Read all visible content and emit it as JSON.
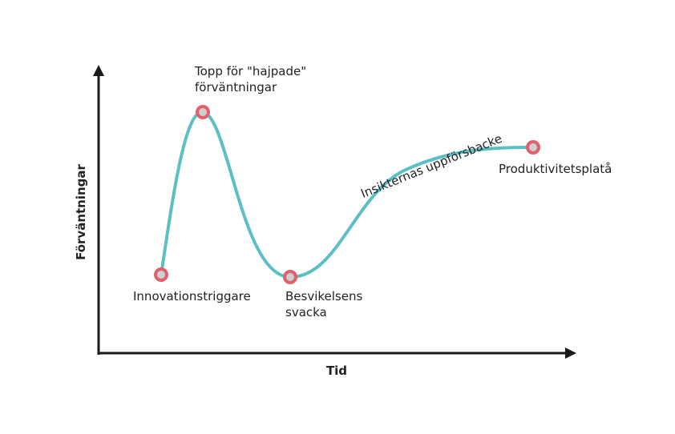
{
  "axes": {
    "x_label": "Tid",
    "y_label": "Förväntningar"
  },
  "points": [
    {
      "lines": [
        "Innovationstriggare"
      ]
    },
    {
      "lines": [
        "Topp för \"hajpade\"",
        "förväntningar"
      ]
    },
    {
      "lines": [
        "Besvikelsens",
        "svacka"
      ]
    },
    {
      "lines": [
        "Produktivitetsplatå"
      ]
    }
  ],
  "curve_label": "Insikternas uppförsbacke"
}
